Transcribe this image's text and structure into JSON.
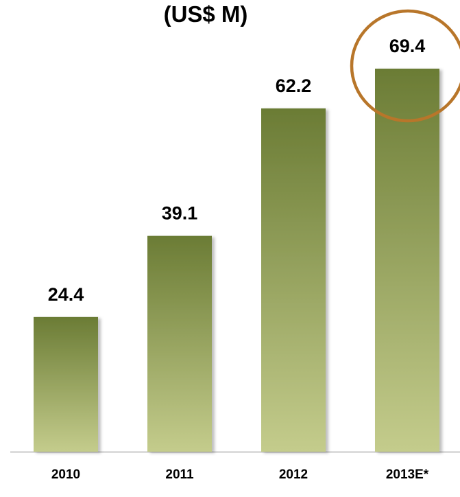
{
  "chart_data": {
    "type": "bar",
    "title": "(US$ M)",
    "categories": [
      "2010",
      "2011",
      "2012",
      "2013E*"
    ],
    "values": [
      24.4,
      39.1,
      62.2,
      69.4
    ],
    "value_labels": [
      "24.4",
      "39.1",
      "62.2",
      "69.4"
    ],
    "xlabel": "",
    "ylabel": "",
    "ylim": [
      0,
      69.4
    ],
    "grid": false,
    "legend": "none",
    "highlight_category": "2013E*",
    "colors": {
      "bar_top": "#6b7c35",
      "bar_bottom": "#c4cc8c",
      "highlight_ring": "#b8762a",
      "axis": "#c8c8c8"
    }
  }
}
